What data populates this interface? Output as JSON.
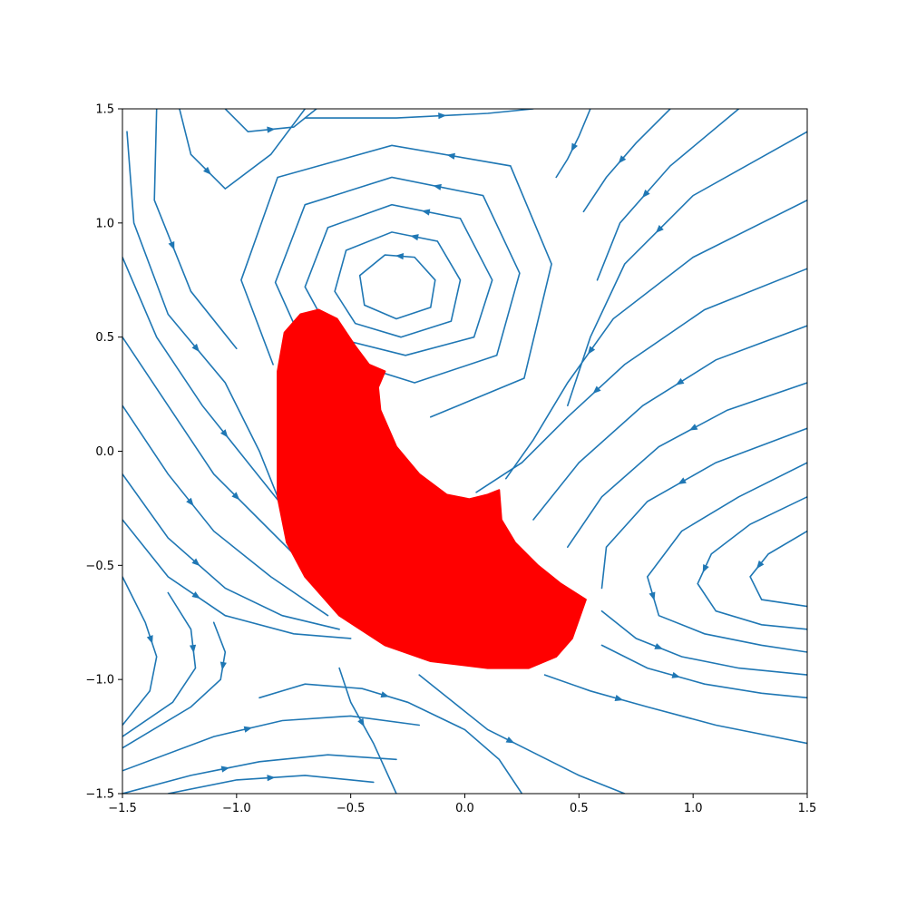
{
  "chart_data": {
    "type": "streamplot",
    "title": "",
    "xlabel": "",
    "ylabel": "",
    "xlim": [
      -1.5,
      1.5
    ],
    "ylim": [
      -1.5,
      1.5
    ],
    "grid": false,
    "legend": "none",
    "x_ticks": [
      -1.5,
      -1.0,
      -0.5,
      0.0,
      0.5,
      1.0,
      1.5
    ],
    "x_tick_labels": [
      "−1.5",
      "−1.0",
      "−0.5",
      "0.0",
      "0.5",
      "1.0",
      "1.5"
    ],
    "y_ticks": [
      1.5,
      1.0,
      0.5,
      0.0,
      -0.5,
      -1.0,
      -1.5
    ],
    "y_tick_labels": [
      "1.5",
      "1.0",
      "0.5",
      "0.0",
      "−0.5",
      "−1.0",
      "−1.5"
    ],
    "vector_field": {
      "description_points": {
        "center": [
          -0.32,
          0.73
        ],
        "saddle": [
          -0.9,
          -0.98
        ],
        "node_right": [
          1.5,
          -0.55
        ]
      }
    },
    "series": [
      {
        "kind": "filled-region",
        "boundary": [
          [
            -0.82,
            0.1
          ],
          [
            -0.82,
            0.35
          ],
          [
            -0.79,
            0.52
          ],
          [
            -0.72,
            0.6
          ],
          [
            -0.64,
            0.62
          ],
          [
            -0.56,
            0.58
          ],
          [
            -0.48,
            0.46
          ],
          [
            -0.42,
            0.38
          ],
          [
            -0.35,
            0.35
          ],
          [
            -0.38,
            0.28
          ],
          [
            -0.37,
            0.18
          ],
          [
            -0.3,
            0.02
          ],
          [
            -0.2,
            -0.1
          ],
          [
            -0.08,
            -0.19
          ],
          [
            0.02,
            -0.21
          ],
          [
            0.1,
            -0.19
          ],
          [
            0.15,
            -0.17
          ],
          [
            0.16,
            -0.3
          ],
          [
            0.22,
            -0.4
          ],
          [
            0.32,
            -0.5
          ],
          [
            0.42,
            -0.58
          ],
          [
            0.53,
            -0.65
          ],
          [
            0.47,
            -0.82
          ],
          [
            0.4,
            -0.9
          ],
          [
            0.28,
            -0.95
          ],
          [
            0.1,
            -0.95
          ],
          [
            -0.15,
            -0.92
          ],
          [
            -0.35,
            -0.85
          ],
          [
            -0.55,
            -0.72
          ],
          [
            -0.7,
            -0.55
          ],
          [
            -0.78,
            -0.4
          ],
          [
            -0.82,
            -0.2
          ],
          [
            -0.82,
            0.1
          ]
        ]
      },
      {
        "kind": "streamlines",
        "lines": [
          [
            [
              -0.3,
              0.58
            ],
            [
              -0.15,
              0.63
            ],
            [
              -0.13,
              0.75
            ],
            [
              -0.22,
              0.85
            ],
            [
              -0.35,
              0.86
            ],
            [
              -0.46,
              0.77
            ],
            [
              -0.44,
              0.64
            ],
            [
              -0.3,
              0.58
            ]
          ],
          [
            [
              -0.28,
              0.5
            ],
            [
              -0.06,
              0.57
            ],
            [
              -0.02,
              0.75
            ],
            [
              -0.12,
              0.92
            ],
            [
              -0.32,
              0.96
            ],
            [
              -0.52,
              0.88
            ],
            [
              -0.57,
              0.7
            ],
            [
              -0.48,
              0.56
            ],
            [
              -0.28,
              0.5
            ]
          ],
          [
            [
              -0.26,
              0.42
            ],
            [
              0.04,
              0.5
            ],
            [
              0.12,
              0.75
            ],
            [
              -0.02,
              1.02
            ],
            [
              -0.32,
              1.08
            ],
            [
              -0.6,
              0.98
            ],
            [
              -0.7,
              0.72
            ],
            [
              -0.58,
              0.5
            ],
            [
              -0.26,
              0.42
            ]
          ],
          [
            [
              -0.22,
              0.3
            ],
            [
              0.14,
              0.42
            ],
            [
              0.24,
              0.78
            ],
            [
              0.08,
              1.12
            ],
            [
              -0.32,
              1.2
            ],
            [
              -0.7,
              1.08
            ],
            [
              -0.83,
              0.74
            ],
            [
              -0.7,
              0.45
            ],
            [
              -0.22,
              0.3
            ]
          ],
          [
            [
              -0.15,
              0.15
            ],
            [
              0.26,
              0.32
            ],
            [
              0.38,
              0.82
            ],
            [
              0.2,
              1.25
            ],
            [
              -0.32,
              1.34
            ],
            [
              -0.82,
              1.2
            ],
            [
              -0.98,
              0.75
            ],
            [
              -0.84,
              0.38
            ]
          ],
          [
            [
              -1.48,
              1.4
            ],
            [
              -1.45,
              1.0
            ],
            [
              -1.3,
              0.6
            ],
            [
              -1.05,
              0.3
            ],
            [
              -0.9,
              0.0
            ],
            [
              -0.8,
              -0.25
            ]
          ],
          [
            [
              -1.35,
              1.5
            ],
            [
              -1.36,
              1.1
            ],
            [
              -1.2,
              0.7
            ],
            [
              -1.0,
              0.45
            ]
          ],
          [
            [
              -1.5,
              0.85
            ],
            [
              -1.35,
              0.5
            ],
            [
              -1.15,
              0.2
            ],
            [
              -0.95,
              -0.05
            ],
            [
              -0.75,
              -0.3
            ],
            [
              -0.5,
              -0.5
            ]
          ],
          [
            [
              -1.5,
              0.5
            ],
            [
              -1.3,
              0.2
            ],
            [
              -1.1,
              -0.1
            ],
            [
              -0.9,
              -0.3
            ],
            [
              -0.7,
              -0.5
            ],
            [
              -0.45,
              -0.68
            ]
          ],
          [
            [
              -1.5,
              0.2
            ],
            [
              -1.3,
              -0.1
            ],
            [
              -1.1,
              -0.35
            ],
            [
              -0.85,
              -0.55
            ],
            [
              -0.6,
              -0.72
            ]
          ],
          [
            [
              -1.5,
              -0.1
            ],
            [
              -1.3,
              -0.38
            ],
            [
              -1.05,
              -0.6
            ],
            [
              -0.8,
              -0.72
            ],
            [
              -0.55,
              -0.78
            ]
          ],
          [
            [
              -1.5,
              -0.3
            ],
            [
              -1.3,
              -0.55
            ],
            [
              -1.05,
              -0.72
            ],
            [
              -0.75,
              -0.8
            ],
            [
              -0.5,
              -0.82
            ]
          ],
          [
            [
              -1.5,
              -0.55
            ],
            [
              -1.4,
              -0.75
            ],
            [
              -1.35,
              -0.9
            ],
            [
              -1.38,
              -1.05
            ],
            [
              -1.5,
              -1.2
            ]
          ],
          [
            [
              -1.3,
              -0.62
            ],
            [
              -1.2,
              -0.78
            ],
            [
              -1.18,
              -0.95
            ],
            [
              -1.28,
              -1.1
            ],
            [
              -1.5,
              -1.25
            ]
          ],
          [
            [
              -1.1,
              -0.75
            ],
            [
              -1.05,
              -0.88
            ],
            [
              -1.07,
              -1.0
            ],
            [
              -1.2,
              -1.12
            ],
            [
              -1.5,
              -1.3
            ]
          ],
          [
            [
              -1.5,
              -1.4
            ],
            [
              -1.1,
              -1.25
            ],
            [
              -0.8,
              -1.18
            ],
            [
              -0.5,
              -1.16
            ],
            [
              -0.2,
              -1.2
            ]
          ],
          [
            [
              -1.5,
              -1.5
            ],
            [
              -1.2,
              -1.42
            ],
            [
              -0.9,
              -1.36
            ],
            [
              -0.6,
              -1.33
            ],
            [
              -0.3,
              -1.35
            ]
          ],
          [
            [
              -1.3,
              -1.5
            ],
            [
              -1.0,
              -1.44
            ],
            [
              -0.7,
              -1.42
            ],
            [
              -0.4,
              -1.45
            ]
          ],
          [
            [
              -0.9,
              -1.08
            ],
            [
              -0.7,
              -1.02
            ],
            [
              -0.45,
              -1.04
            ],
            [
              -0.25,
              -1.1
            ],
            [
              0.0,
              -1.22
            ],
            [
              0.15,
              -1.35
            ],
            [
              0.25,
              -1.5
            ]
          ],
          [
            [
              -0.55,
              -0.95
            ],
            [
              -0.5,
              -1.1
            ],
            [
              -0.4,
              -1.28
            ],
            [
              -0.3,
              -1.5
            ]
          ],
          [
            [
              -0.2,
              -0.98
            ],
            [
              -0.05,
              -1.1
            ],
            [
              0.1,
              -1.22
            ],
            [
              0.3,
              -1.32
            ],
            [
              0.5,
              -1.42
            ],
            [
              0.7,
              -1.5
            ]
          ],
          [
            [
              0.35,
              -0.98
            ],
            [
              0.55,
              -1.05
            ],
            [
              0.8,
              -1.12
            ],
            [
              1.1,
              -1.2
            ],
            [
              1.5,
              -1.28
            ]
          ],
          [
            [
              0.6,
              -0.85
            ],
            [
              0.8,
              -0.95
            ],
            [
              1.05,
              -1.02
            ],
            [
              1.3,
              -1.06
            ],
            [
              1.5,
              -1.08
            ]
          ],
          [
            [
              0.6,
              -0.7
            ],
            [
              0.75,
              -0.82
            ],
            [
              0.95,
              -0.9
            ],
            [
              1.2,
              -0.95
            ],
            [
              1.5,
              -0.98
            ]
          ],
          [
            [
              1.5,
              -0.05
            ],
            [
              1.2,
              -0.2
            ],
            [
              0.95,
              -0.35
            ],
            [
              0.8,
              -0.55
            ],
            [
              0.85,
              -0.72
            ],
            [
              1.05,
              -0.8
            ],
            [
              1.3,
              -0.85
            ],
            [
              1.5,
              -0.88
            ]
          ],
          [
            [
              1.5,
              -0.2
            ],
            [
              1.25,
              -0.32
            ],
            [
              1.08,
              -0.45
            ],
            [
              1.02,
              -0.58
            ],
            [
              1.1,
              -0.7
            ],
            [
              1.3,
              -0.76
            ],
            [
              1.5,
              -0.78
            ]
          ],
          [
            [
              1.5,
              -0.35
            ],
            [
              1.33,
              -0.45
            ],
            [
              1.25,
              -0.55
            ],
            [
              1.3,
              -0.65
            ],
            [
              1.5,
              -0.68
            ]
          ],
          [
            [
              1.5,
              0.1
            ],
            [
              1.1,
              -0.05
            ],
            [
              0.8,
              -0.22
            ],
            [
              0.62,
              -0.42
            ],
            [
              0.6,
              -0.6
            ]
          ],
          [
            [
              1.5,
              0.3
            ],
            [
              1.15,
              0.18
            ],
            [
              0.85,
              0.02
            ],
            [
              0.6,
              -0.2
            ],
            [
              0.45,
              -0.42
            ]
          ],
          [
            [
              1.5,
              0.55
            ],
            [
              1.1,
              0.4
            ],
            [
              0.78,
              0.2
            ],
            [
              0.5,
              -0.05
            ],
            [
              0.3,
              -0.3
            ]
          ],
          [
            [
              1.5,
              0.8
            ],
            [
              1.05,
              0.62
            ],
            [
              0.7,
              0.38
            ],
            [
              0.45,
              0.15
            ],
            [
              0.25,
              -0.05
            ],
            [
              0.05,
              -0.18
            ]
          ],
          [
            [
              1.5,
              1.1
            ],
            [
              1.0,
              0.85
            ],
            [
              0.65,
              0.58
            ],
            [
              0.45,
              0.3
            ],
            [
              0.3,
              0.05
            ],
            [
              0.18,
              -0.12
            ]
          ],
          [
            [
              1.5,
              1.4
            ],
            [
              1.0,
              1.12
            ],
            [
              0.7,
              0.82
            ],
            [
              0.55,
              0.5
            ],
            [
              0.45,
              0.2
            ]
          ],
          [
            [
              1.2,
              1.5
            ],
            [
              0.9,
              1.25
            ],
            [
              0.68,
              1.0
            ],
            [
              0.58,
              0.75
            ]
          ],
          [
            [
              0.9,
              1.5
            ],
            [
              0.75,
              1.35
            ],
            [
              0.62,
              1.2
            ],
            [
              0.52,
              1.05
            ]
          ],
          [
            [
              0.55,
              1.5
            ],
            [
              0.5,
              1.38
            ],
            [
              0.45,
              1.28
            ],
            [
              0.4,
              1.2
            ]
          ],
          [
            [
              -1.25,
              1.5
            ],
            [
              -1.2,
              1.3
            ],
            [
              -1.05,
              1.15
            ],
            [
              -0.85,
              1.3
            ],
            [
              -0.7,
              1.5
            ]
          ],
          [
            [
              -1.05,
              1.5
            ],
            [
              -0.95,
              1.4
            ],
            [
              -0.75,
              1.42
            ],
            [
              -0.65,
              1.5
            ]
          ],
          [
            [
              -0.7,
              1.46
            ],
            [
              -0.3,
              1.46
            ],
            [
              0.1,
              1.48
            ],
            [
              0.3,
              1.5
            ]
          ]
        ]
      }
    ]
  }
}
